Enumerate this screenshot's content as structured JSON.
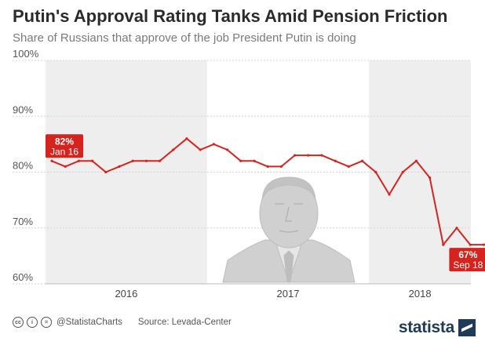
{
  "header": {
    "title": "Putin's Approval Rating Tanks Amid Pension Friction",
    "subtitle": "Share of Russians that approve of the job President Putin is doing"
  },
  "footer": {
    "cc_icons": [
      "cc-icon",
      "person-icon",
      "equals-icon"
    ],
    "cc_labels": [
      "cc",
      "i",
      "="
    ],
    "handle": "@StatistaCharts",
    "source": "Source: Levada-Center",
    "brand": "statista"
  },
  "colors": {
    "line": "#d7231e",
    "band_shaded": "#eeeeee",
    "grid": "#d4d4d4",
    "text": "#2b2b2b",
    "brand": "#1f3b57"
  },
  "chart_data": {
    "type": "line",
    "title": "Putin's Approval Rating Tanks Amid Pension Friction",
    "subtitle": "Share of Russians that approve of the job President Putin is doing",
    "y_ticks": [
      "60%",
      "70%",
      "80%",
      "90%",
      "100%"
    ],
    "ylim": [
      60,
      100
    ],
    "year_labels": [
      "2016",
      "2017",
      "2018"
    ],
    "grid": true,
    "series": [
      {
        "x": [
          "2016-01",
          "2016-02",
          "2016-03",
          "2016-04",
          "2016-05",
          "2016-06",
          "2016-07",
          "2016-08",
          "2016-09",
          "2016-10",
          "2016-11",
          "2016-12",
          "2017-01",
          "2017-02",
          "2017-03",
          "2017-04",
          "2017-05",
          "2017-06",
          "2017-07",
          "2017-08",
          "2017-09",
          "2017-10",
          "2017-11",
          "2017-12",
          "2018-01",
          "2018-02",
          "2018-03",
          "2018-04",
          "2018-05",
          "2018-06",
          "2018-07",
          "2018-08",
          "2018-09"
        ],
        "values": [
          82,
          81,
          82,
          82,
          80,
          81,
          82,
          82,
          82,
          84,
          86,
          84,
          85,
          84,
          82,
          82,
          81,
          81,
          83,
          83,
          83,
          82,
          81,
          82,
          80,
          76,
          80,
          82,
          79,
          67,
          70,
          67,
          67
        ]
      }
    ],
    "annotations": [
      {
        "x": "2016-01",
        "value_label": "82%",
        "date_label": "Jan 16"
      },
      {
        "x": "2018-09",
        "value_label": "67%",
        "date_label": "Sep 18"
      }
    ]
  }
}
